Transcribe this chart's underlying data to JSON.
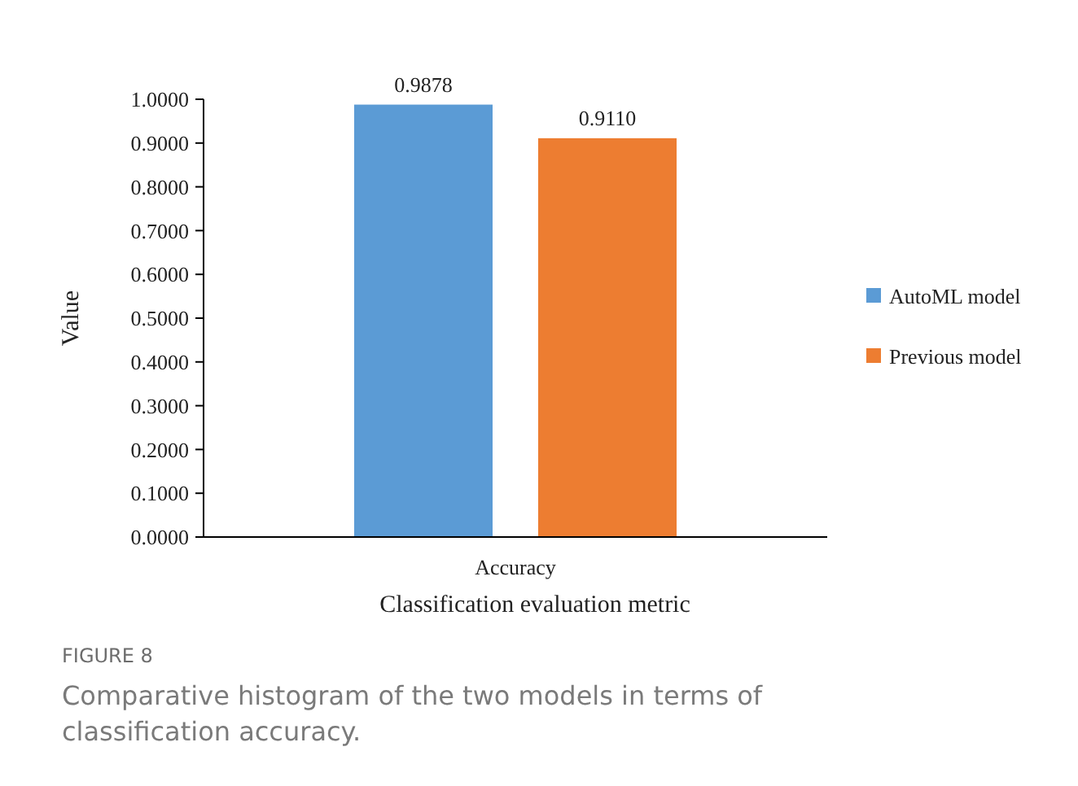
{
  "chart_data": {
    "type": "bar",
    "xlabel": "Classification evaluation metric",
    "ylabel": "Value",
    "categories": [
      "Accuracy"
    ],
    "series": [
      {
        "name": "AutoML model",
        "color": "#5b9bd5",
        "values": [
          0.9878
        ],
        "value_labels": [
          "0.9878"
        ]
      },
      {
        "name": "Previous model",
        "color": "#ed7d31",
        "values": [
          0.911
        ],
        "value_labels": [
          "0.9110"
        ]
      }
    ],
    "ylim": [
      0,
      1
    ],
    "yticks": [
      {
        "value": 0,
        "label": "0.0000"
      },
      {
        "value": 0.1,
        "label": "0.1000"
      },
      {
        "value": 0.2,
        "label": "0.2000"
      },
      {
        "value": 0.3,
        "label": "0.3000"
      },
      {
        "value": 0.4,
        "label": "0.4000"
      },
      {
        "value": 0.5,
        "label": "0.5000"
      },
      {
        "value": 0.6,
        "label": "0.6000"
      },
      {
        "value": 0.7,
        "label": "0.7000"
      },
      {
        "value": 0.8,
        "label": "0.8000"
      },
      {
        "value": 0.9,
        "label": "0.9000"
      },
      {
        "value": 1,
        "label": "1.0000"
      }
    ],
    "legend": "right",
    "grid": false,
    "annotations": [
      "FIGURE 8",
      "Comparative histogram of the two models in terms of classification accuracy."
    ]
  }
}
